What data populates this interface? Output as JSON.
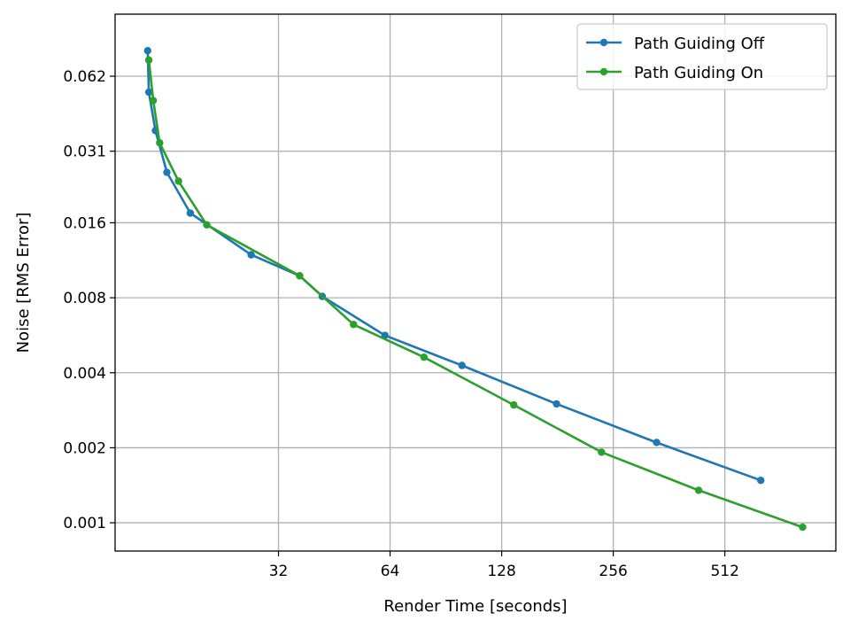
{
  "chart_data": {
    "type": "line",
    "title": "",
    "xlabel": "Render Time [seconds]",
    "ylabel": "Noise [RMS Error]",
    "xscale": "log2",
    "yscale": "log2",
    "xlim": [
      11.6,
      1020
    ],
    "ylim": [
      0.00077,
      0.11
    ],
    "x_ticks": [
      32,
      64,
      128,
      256,
      512
    ],
    "x_tick_labels": [
      "32",
      "64",
      "128",
      "256",
      "512"
    ],
    "y_ticks": [
      0.001,
      0.002,
      0.004,
      0.008,
      0.016,
      0.031,
      0.062
    ],
    "y_tick_labels": [
      "0.001",
      "0.002",
      "0.004",
      "0.008",
      "0.016",
      "0.031",
      "0.062"
    ],
    "grid": true,
    "legend": "top-right",
    "series": [
      {
        "name": "Path Guiding Off",
        "color": "#1f77b4",
        "x": [
          14.2,
          14.3,
          14.9,
          16.0,
          18.5,
          27.0,
          36.5,
          42.0,
          62.0,
          100.0,
          180.0,
          335.0,
          640.0
        ],
        "y": [
          0.0785,
          0.0535,
          0.0375,
          0.0255,
          0.0175,
          0.0119,
          0.0098,
          0.0081,
          0.00565,
          0.00428,
          0.003,
          0.0021,
          0.00148
        ]
      },
      {
        "name": "Path Guiding On",
        "color": "#2ca02c",
        "x": [
          14.3,
          14.7,
          15.3,
          17.2,
          20.5,
          36.5,
          51.0,
          79.0,
          138.0,
          238.0,
          435.0,
          830.0
        ],
        "y": [
          0.072,
          0.0495,
          0.0335,
          0.0235,
          0.0157,
          0.0098,
          0.00625,
          0.00462,
          0.00297,
          0.00192,
          0.00135,
          0.00096
        ]
      }
    ]
  }
}
